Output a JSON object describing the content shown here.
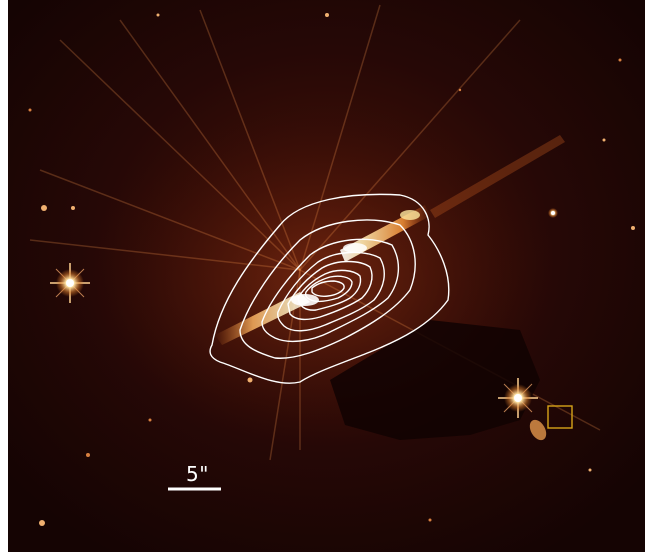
{
  "image": {
    "scale_bar_label": "5\""
  },
  "colors": {
    "background": "#1a0403",
    "star_core": "#fff6d8",
    "jet_glow": "#f3a24a",
    "contours": "#ffffff",
    "marker_box": "#d6a318"
  },
  "icons": [
    "scale-bar",
    "contour-lines",
    "marker-box"
  ]
}
